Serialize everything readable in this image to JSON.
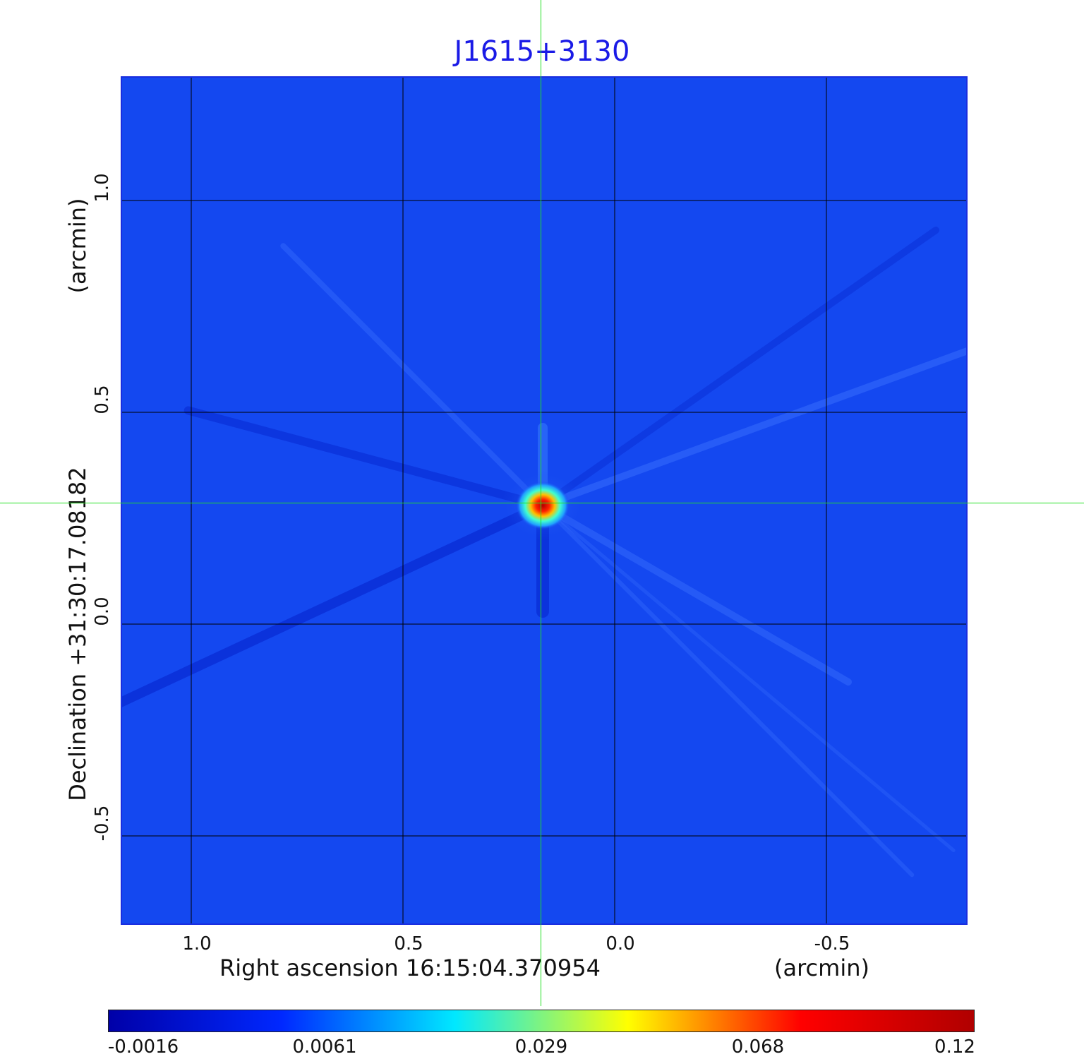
{
  "title": "J1615+3130",
  "x_axis": {
    "label": "Right ascension  16:15:04.370954",
    "unit": "(arcmin)",
    "ticks": [
      "1.0",
      "0.5",
      "0.0",
      "-0.5"
    ],
    "tick_values": [
      1.0,
      0.5,
      0.0,
      -0.5
    ]
  },
  "y_axis": {
    "label": "Declination  +31:30:17.08182",
    "unit": "(arcmin)",
    "ticks": [
      "1.0",
      "0.5",
      "0.0",
      "-0.5"
    ],
    "tick_values": [
      1.0,
      0.5,
      0.0,
      -0.5
    ]
  },
  "colorbar": {
    "labels": [
      "-0.0016",
      "0.0061",
      "0.029",
      "0.068",
      "0.12"
    ],
    "colors": [
      "#0000a8",
      "#0028ff",
      "#00e8ff",
      "#ffff00",
      "#ff0000",
      "#b00000"
    ]
  },
  "source": {
    "ra_offset": 0.17,
    "dec_offset": 0.28
  },
  "colors": {
    "background": "#1448f0",
    "grid": "#000000",
    "crosshair": "#22e022",
    "title": "#1a1ae6"
  }
}
